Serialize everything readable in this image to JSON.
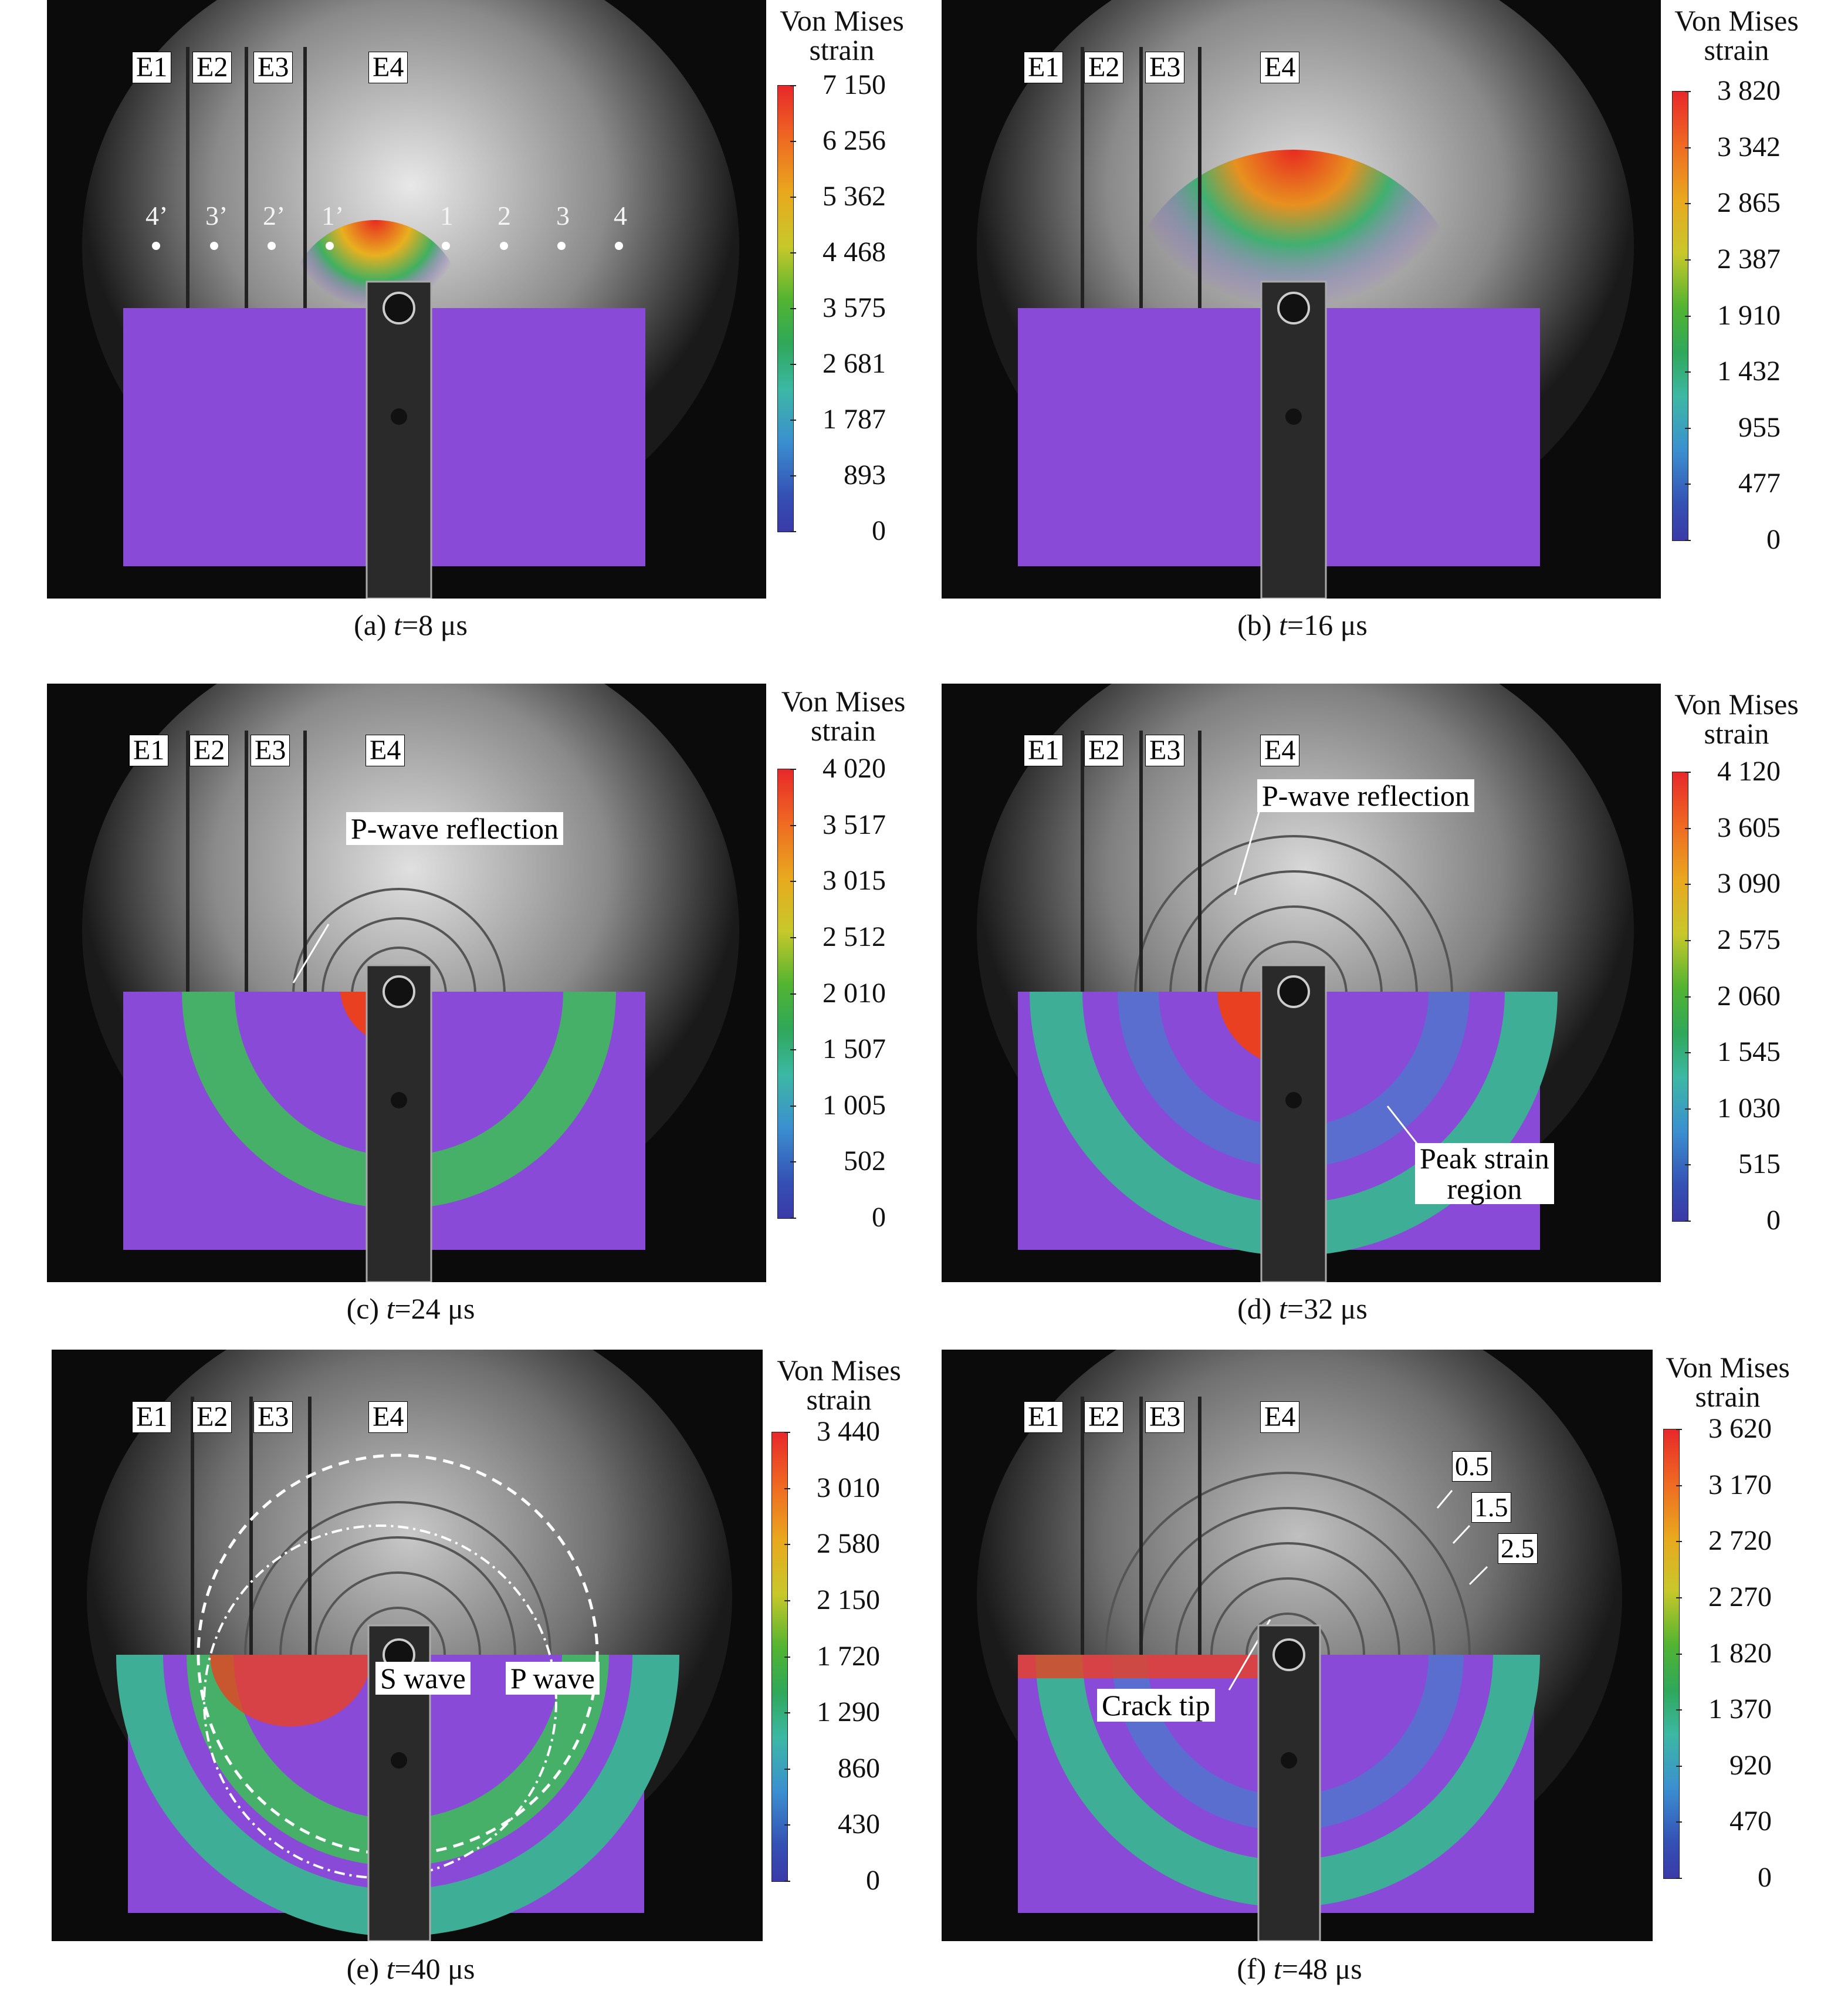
{
  "panels": [
    {
      "id": "a",
      "caption": {
        "prefix": "(a) ",
        "var": "t",
        "suffix": "=8 μs"
      },
      "scale": {
        "title_line1": "Von Mises",
        "title_line2": "strain",
        "ticks": [
          "7 150",
          "6 256",
          "5 362",
          "4 468",
          "3 575",
          "2 681",
          "1 787",
          "893",
          "0"
        ]
      },
      "electrodes": [
        "E1",
        "E2",
        "E3",
        "E4"
      ],
      "points_left": [
        "4’",
        "3’",
        "2’",
        "1’"
      ],
      "points_right": [
        "1",
        "2",
        "3",
        "4"
      ]
    },
    {
      "id": "b",
      "caption": {
        "prefix": "(b) ",
        "var": "t",
        "suffix": "=16 μs"
      },
      "scale": {
        "title_line1": "Von Mises",
        "title_line2": "strain",
        "ticks": [
          "3 820",
          "3 342",
          "2 865",
          "2 387",
          "1 910",
          "1 432",
          "955",
          "477",
          "0"
        ]
      },
      "electrodes": [
        "E1",
        "E2",
        "E3",
        "E4"
      ]
    },
    {
      "id": "c",
      "caption": {
        "prefix": "(c) ",
        "var": "t",
        "suffix": "=24 μs"
      },
      "scale": {
        "title_line1": "Von Mises",
        "title_line2": "strain",
        "ticks": [
          "4 020",
          "3 517",
          "3 015",
          "2 512",
          "2 010",
          "1 507",
          "1 005",
          "502",
          "0"
        ]
      },
      "electrodes": [
        "E1",
        "E2",
        "E3",
        "E4"
      ],
      "annotations": [
        "P-wave reflection"
      ]
    },
    {
      "id": "d",
      "caption": {
        "prefix": "(d) ",
        "var": "t",
        "suffix": "=32 μs"
      },
      "scale": {
        "title_line1": "Von Mises",
        "title_line2": "strain",
        "ticks": [
          "4 120",
          "3 605",
          "3 090",
          "2 575",
          "2 060",
          "1 545",
          "1 030",
          "515",
          "0"
        ]
      },
      "electrodes": [
        "E1",
        "E2",
        "E3",
        "E4"
      ],
      "annotations": [
        "P-wave reflection",
        "Peak strain",
        "region"
      ]
    },
    {
      "id": "e",
      "caption": {
        "prefix": "(e) ",
        "var": "t",
        "suffix": "=40 μs"
      },
      "scale": {
        "title_line1": "Von Mises",
        "title_line2": "strain",
        "ticks": [
          "3 440",
          "3 010",
          "2 580",
          "2 150",
          "1 720",
          "1 290",
          "860",
          "430",
          "0"
        ]
      },
      "electrodes": [
        "E1",
        "E2",
        "E3",
        "E4"
      ],
      "annotations": [
        "S wave",
        "P wave"
      ]
    },
    {
      "id": "f",
      "caption": {
        "prefix": "(f) ",
        "var": "t",
        "suffix": "=48 μs"
      },
      "scale": {
        "title_line1": "Von Mises",
        "title_line2": "strain",
        "ticks": [
          "3 620",
          "3 170",
          "2 720",
          "2 270",
          "1 820",
          "1 370",
          "920",
          "470",
          "0"
        ]
      },
      "electrodes": [
        "E1",
        "E2",
        "E3",
        "E4"
      ],
      "annotations": [
        "Crack tip"
      ],
      "rings": [
        "0.5",
        "1.5",
        "2.5"
      ]
    }
  ]
}
